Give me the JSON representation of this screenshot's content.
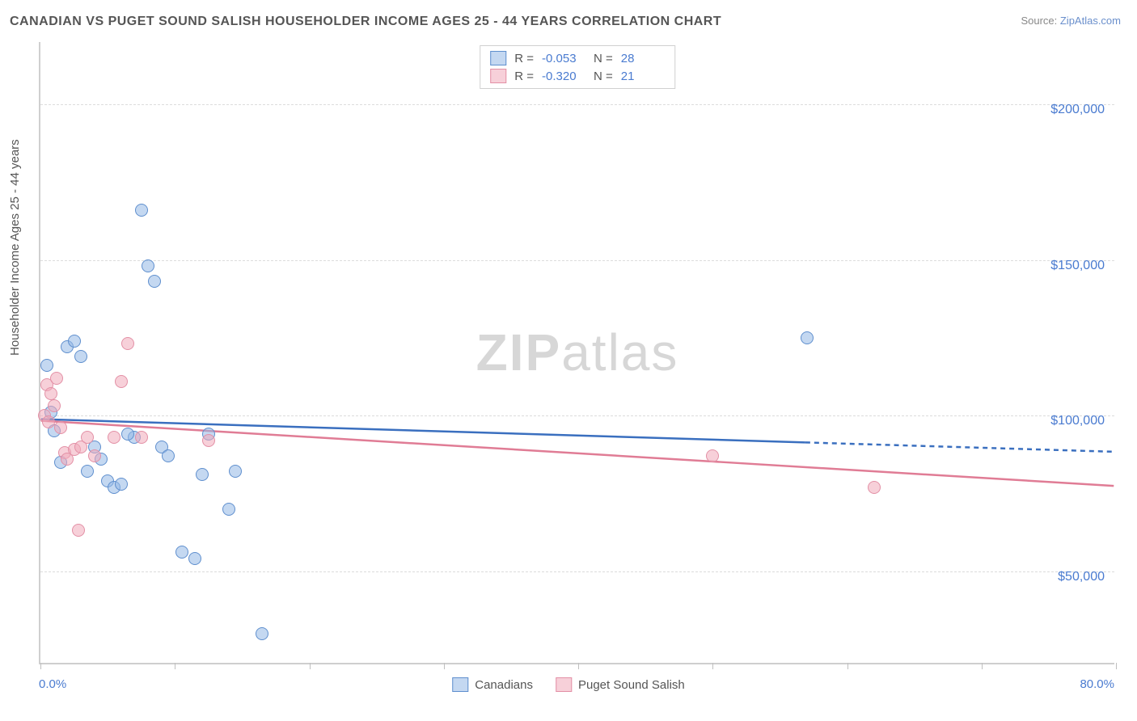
{
  "title": "CANADIAN VS PUGET SOUND SALISH HOUSEHOLDER INCOME AGES 25 - 44 YEARS CORRELATION CHART",
  "source_prefix": "Source: ",
  "source_link": "ZipAtlas.com",
  "y_axis_title": "Householder Income Ages 25 - 44 years",
  "watermark_bold": "ZIP",
  "watermark_rest": "atlas",
  "chart": {
    "type": "scatter-with-regression",
    "x_min": 0.0,
    "x_max": 80.0,
    "x_min_label": "0.0%",
    "x_max_label": "80.0%",
    "y_min": 20000,
    "y_max": 220000,
    "y_ticks": [
      50000,
      100000,
      150000,
      200000
    ],
    "y_tick_labels": [
      "$50,000",
      "$100,000",
      "$150,000",
      "$200,000"
    ],
    "x_tick_positions": [
      0,
      10,
      20,
      30,
      40,
      50,
      60,
      70,
      80
    ],
    "grid_color": "#dcdcdc",
    "axis_color": "#cfcfcf",
    "label_color": "#4a7bd0",
    "text_color": "#555555",
    "background_color": "#ffffff",
    "point_radius": 8,
    "point_border_width": 1.5,
    "title_fontsize": 16,
    "label_fontsize": 15,
    "tick_fontsize": 16
  },
  "series": [
    {
      "name": "Canadians",
      "color_fill": "rgba(147,184,230,0.55)",
      "color_border": "#5f8fce",
      "R": "-0.053",
      "N": "28",
      "regression": {
        "x1": 0,
        "y1": 98500,
        "x2_solid": 57,
        "y2_solid": 91000,
        "x2": 80,
        "y2": 88000,
        "color": "#3a6fbf",
        "width": 2.5
      },
      "points": [
        {
          "x": 0.5,
          "y": 116000
        },
        {
          "x": 0.8,
          "y": 101000
        },
        {
          "x": 1.0,
          "y": 95000
        },
        {
          "x": 1.5,
          "y": 85000
        },
        {
          "x": 2.0,
          "y": 122000
        },
        {
          "x": 2.5,
          "y": 124000
        },
        {
          "x": 3.0,
          "y": 119000
        },
        {
          "x": 3.5,
          "y": 82000
        },
        {
          "x": 4.0,
          "y": 90000
        },
        {
          "x": 4.5,
          "y": 86000
        },
        {
          "x": 5.0,
          "y": 79000
        },
        {
          "x": 5.5,
          "y": 77000
        },
        {
          "x": 6.0,
          "y": 78000
        },
        {
          "x": 7.0,
          "y": 93000
        },
        {
          "x": 7.5,
          "y": 166000
        },
        {
          "x": 8.0,
          "y": 148000
        },
        {
          "x": 8.5,
          "y": 143000
        },
        {
          "x": 9.0,
          "y": 90000
        },
        {
          "x": 9.5,
          "y": 87000
        },
        {
          "x": 10.5,
          "y": 56000
        },
        {
          "x": 11.5,
          "y": 54000
        },
        {
          "x": 12.0,
          "y": 81000
        },
        {
          "x": 12.5,
          "y": 94000
        },
        {
          "x": 14.0,
          "y": 70000
        },
        {
          "x": 14.5,
          "y": 82000
        },
        {
          "x": 16.5,
          "y": 30000
        },
        {
          "x": 57.0,
          "y": 125000
        },
        {
          "x": 6.5,
          "y": 94000
        }
      ]
    },
    {
      "name": "Puget Sound Salish",
      "color_fill": "rgba(240,170,185,0.55)",
      "color_border": "#e390a6",
      "R": "-0.320",
      "N": "21",
      "regression": {
        "x1": 0,
        "y1": 98000,
        "x2_solid": 80,
        "y2_solid": 77000,
        "x2": 80,
        "y2": 77000,
        "color": "#e07c95",
        "width": 2.5
      },
      "points": [
        {
          "x": 0.3,
          "y": 100000
        },
        {
          "x": 0.5,
          "y": 110000
        },
        {
          "x": 0.8,
          "y": 107000
        },
        {
          "x": 1.0,
          "y": 103000
        },
        {
          "x": 1.2,
          "y": 112000
        },
        {
          "x": 1.5,
          "y": 96000
        },
        {
          "x": 1.8,
          "y": 88000
        },
        {
          "x": 2.0,
          "y": 86000
        },
        {
          "x": 2.5,
          "y": 89000
        },
        {
          "x": 2.8,
          "y": 63000
        },
        {
          "x": 3.0,
          "y": 90000
        },
        {
          "x": 3.5,
          "y": 93000
        },
        {
          "x": 4.0,
          "y": 87000
        },
        {
          "x": 5.5,
          "y": 93000
        },
        {
          "x": 6.0,
          "y": 111000
        },
        {
          "x": 6.5,
          "y": 123000
        },
        {
          "x": 7.5,
          "y": 93000
        },
        {
          "x": 12.5,
          "y": 92000
        },
        {
          "x": 50.0,
          "y": 87000
        },
        {
          "x": 62.0,
          "y": 77000
        },
        {
          "x": 0.6,
          "y": 98000
        }
      ]
    }
  ],
  "legend_top_labels": {
    "R_label": "R = ",
    "N_label": "N = "
  },
  "legend_bottom": [
    "Canadians",
    "Puget Sound Salish"
  ]
}
